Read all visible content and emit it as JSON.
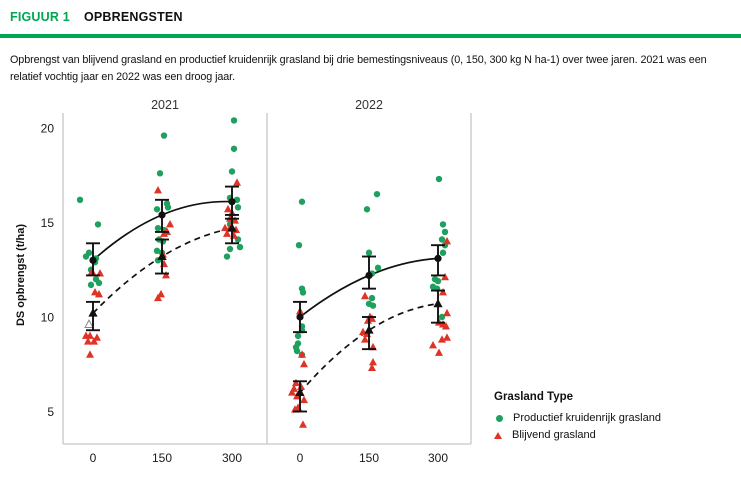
{
  "header": {
    "figure_label": "FIGUUR 1",
    "title": "OPBRENGSTEN"
  },
  "description": "Opbrengst van blijvend grasland en productief kruidenrijk grasland bij drie bemestingsniveaus (0, 150, 300 kg N ha-1) over twee jaren. 2021 was een relatief vochtig jaar en 2022 was een droog jaar.",
  "colors": {
    "accent_green": "#00A651",
    "productief": "#1FA05E",
    "blijvend": "#DF3328",
    "mean_black": "#111111",
    "axis_gray": "#c6c6c6",
    "tick_text": "#1a1a1a",
    "facet_text": "#333333"
  },
  "chart_data": {
    "type": "scatter",
    "ylabel": "DS opbrengst (t/ha)",
    "yticks": [
      5,
      10,
      15,
      20
    ],
    "ylim": [
      3.3,
      20.8
    ],
    "xticks": [
      "0",
      "150",
      "300"
    ],
    "x_unit": "kg N ha-1",
    "grid": false,
    "legend": {
      "title": "Grasland Type",
      "position": "bottom-right",
      "items": [
        {
          "label": "Productief kruidenrijk grasland",
          "marker": "circle"
        },
        {
          "label": "Blijvend grasland",
          "marker": "triangle"
        }
      ]
    },
    "facets": [
      {
        "label": "2021",
        "levels": [
          {
            "x": "0",
            "productief": [
              [
                16.2,
                -13
              ],
              [
                14.9,
                5
              ],
              [
                13.4,
                -4
              ],
              [
                13.2,
                -7
              ],
              [
                13.1,
                3
              ],
              [
                12.9,
                2
              ],
              [
                12.5,
                -2
              ],
              [
                12.0,
                3
              ],
              [
                11.8,
                6
              ],
              [
                11.7,
                -2
              ]
            ],
            "blijvend": [
              [
                12.4,
                -1
              ],
              [
                12.3,
                7
              ],
              [
                11.3,
                2
              ],
              [
                11.2,
                6
              ],
              [
                9.0,
                -7
              ],
              [
                9.0,
                -3
              ],
              [
                8.9,
                4
              ],
              [
                8.7,
                -5
              ],
              [
                8.7,
                1
              ],
              [
                8.0,
                -3
              ]
            ],
            "blijvend_open": [
              [
                9.6,
                -4
              ]
            ],
            "productief_mean": {
              "mean": 13.0,
              "lo": 12.2,
              "hi": 13.9
            },
            "blijvend_mean": {
              "mean": 10.2,
              "lo": 9.3,
              "hi": 10.8
            }
          },
          {
            "x": "150",
            "productief": [
              [
                19.6,
                2
              ],
              [
                17.6,
                -2
              ],
              [
                16.0,
                5
              ],
              [
                15.8,
                6
              ],
              [
                15.7,
                -5
              ],
              [
                14.7,
                -4
              ],
              [
                14.6,
                2
              ],
              [
                14.1,
                -3
              ],
              [
                14.0,
                1
              ],
              [
                13.5,
                -5
              ],
              [
                13.4,
                0
              ],
              [
                13.0,
                -4
              ]
            ],
            "blijvend": [
              [
                16.7,
                -4
              ],
              [
                14.9,
                8
              ],
              [
                14.5,
                5
              ],
              [
                14.4,
                2
              ],
              [
                13.3,
                1
              ],
              [
                12.8,
                2
              ],
              [
                12.2,
                4
              ],
              [
                11.2,
                -1
              ],
              [
                11.0,
                -4
              ]
            ],
            "blijvend_open": [],
            "productief_mean": {
              "mean": 15.4,
              "lo": 14.5,
              "hi": 16.2
            },
            "blijvend_mean": {
              "mean": 13.2,
              "lo": 12.3,
              "hi": 14.1
            }
          },
          {
            "x": "300",
            "productief": [
              [
                20.4,
                2
              ],
              [
                18.9,
                2
              ],
              [
                17.7,
                0
              ],
              [
                16.3,
                -2
              ],
              [
                16.2,
                5
              ],
              [
                15.8,
                6
              ],
              [
                14.9,
                -2
              ],
              [
                14.1,
                6
              ],
              [
                13.7,
                8
              ],
              [
                13.6,
                -2
              ],
              [
                13.2,
                -5
              ]
            ],
            "blijvend": [
              [
                17.1,
                5
              ],
              [
                15.7,
                -4
              ],
              [
                15.5,
                0
              ],
              [
                15.2,
                -2
              ],
              [
                15.1,
                3
              ],
              [
                14.8,
                -1
              ],
              [
                14.7,
                -7
              ],
              [
                14.6,
                4
              ],
              [
                14.4,
                -5
              ],
              [
                14.3,
                2
              ]
            ],
            "blijvend_open": [],
            "productief_mean": {
              "mean": 16.1,
              "lo": 15.2,
              "hi": 16.9
            },
            "blijvend_mean": {
              "mean": 14.7,
              "lo": 13.9,
              "hi": 15.4
            }
          }
        ]
      },
      {
        "label": "2022",
        "levels": [
          {
            "x": "0",
            "productief": [
              [
                16.1,
                2
              ],
              [
                13.8,
                -1
              ],
              [
                11.5,
                2
              ],
              [
                11.3,
                3
              ],
              [
                9.5,
                2
              ],
              [
                9.3,
                2
              ],
              [
                9.0,
                -2
              ],
              [
                8.6,
                -2
              ],
              [
                8.4,
                -4
              ],
              [
                8.2,
                -3
              ],
              [
                8.0,
                2
              ]
            ],
            "blijvend": [
              [
                10.3,
                0
              ],
              [
                8.0,
                2
              ],
              [
                7.5,
                4
              ],
              [
                6.5,
                -4
              ],
              [
                6.3,
                1
              ],
              [
                6.2,
                -6
              ],
              [
                6.0,
                -8
              ],
              [
                5.8,
                -3
              ],
              [
                5.6,
                4
              ],
              [
                5.2,
                -2
              ],
              [
                5.1,
                -5
              ],
              [
                4.3,
                3
              ]
            ],
            "blijvend_open": [],
            "productief_mean": {
              "mean": 10.0,
              "lo": 9.2,
              "hi": 10.8
            },
            "blijvend_mean": {
              "mean": 6.0,
              "lo": 5.0,
              "hi": 6.6
            }
          },
          {
            "x": "150",
            "productief": [
              [
                16.5,
                8
              ],
              [
                15.7,
                -2
              ],
              [
                13.4,
                0
              ],
              [
                12.6,
                9
              ],
              [
                12.3,
                3
              ],
              [
                11.0,
                3
              ],
              [
                10.7,
                0
              ],
              [
                10.6,
                4
              ]
            ],
            "blijvend": [
              [
                11.1,
                -4
              ],
              [
                10.0,
                1
              ],
              [
                9.9,
                3
              ],
              [
                9.8,
                -1
              ],
              [
                9.2,
                -6
              ],
              [
                9.1,
                -2
              ],
              [
                8.8,
                -4
              ],
              [
                8.4,
                4
              ],
              [
                7.6,
                4
              ],
              [
                7.3,
                3
              ]
            ],
            "blijvend_open": [],
            "productief_mean": {
              "mean": 12.2,
              "lo": 11.5,
              "hi": 13.2
            },
            "blijvend_mean": {
              "mean": 9.3,
              "lo": 8.3,
              "hi": 10.0
            }
          },
          {
            "x": "300",
            "productief": [
              [
                17.3,
                1
              ],
              [
                14.9,
                5
              ],
              [
                14.5,
                7
              ],
              [
                14.1,
                4
              ],
              [
                13.8,
                7
              ],
              [
                13.4,
                5
              ],
              [
                12.0,
                -3
              ],
              [
                11.9,
                0
              ],
              [
                11.6,
                -5
              ],
              [
                11.5,
                -1
              ],
              [
                10.0,
                4
              ]
            ],
            "blijvend": [
              [
                14.0,
                9
              ],
              [
                12.1,
                7
              ],
              [
                11.3,
                5
              ],
              [
                10.2,
                9
              ],
              [
                9.7,
                1
              ],
              [
                9.6,
                5
              ],
              [
                9.5,
                8
              ],
              [
                8.9,
                9
              ],
              [
                8.8,
                4
              ],
              [
                8.5,
                -5
              ],
              [
                8.1,
                1
              ]
            ],
            "blijvend_open": [],
            "productief_mean": {
              "mean": 13.1,
              "lo": 12.2,
              "hi": 13.8
            },
            "blijvend_mean": {
              "mean": 10.7,
              "lo": 9.7,
              "hi": 11.4
            }
          }
        ]
      }
    ]
  }
}
